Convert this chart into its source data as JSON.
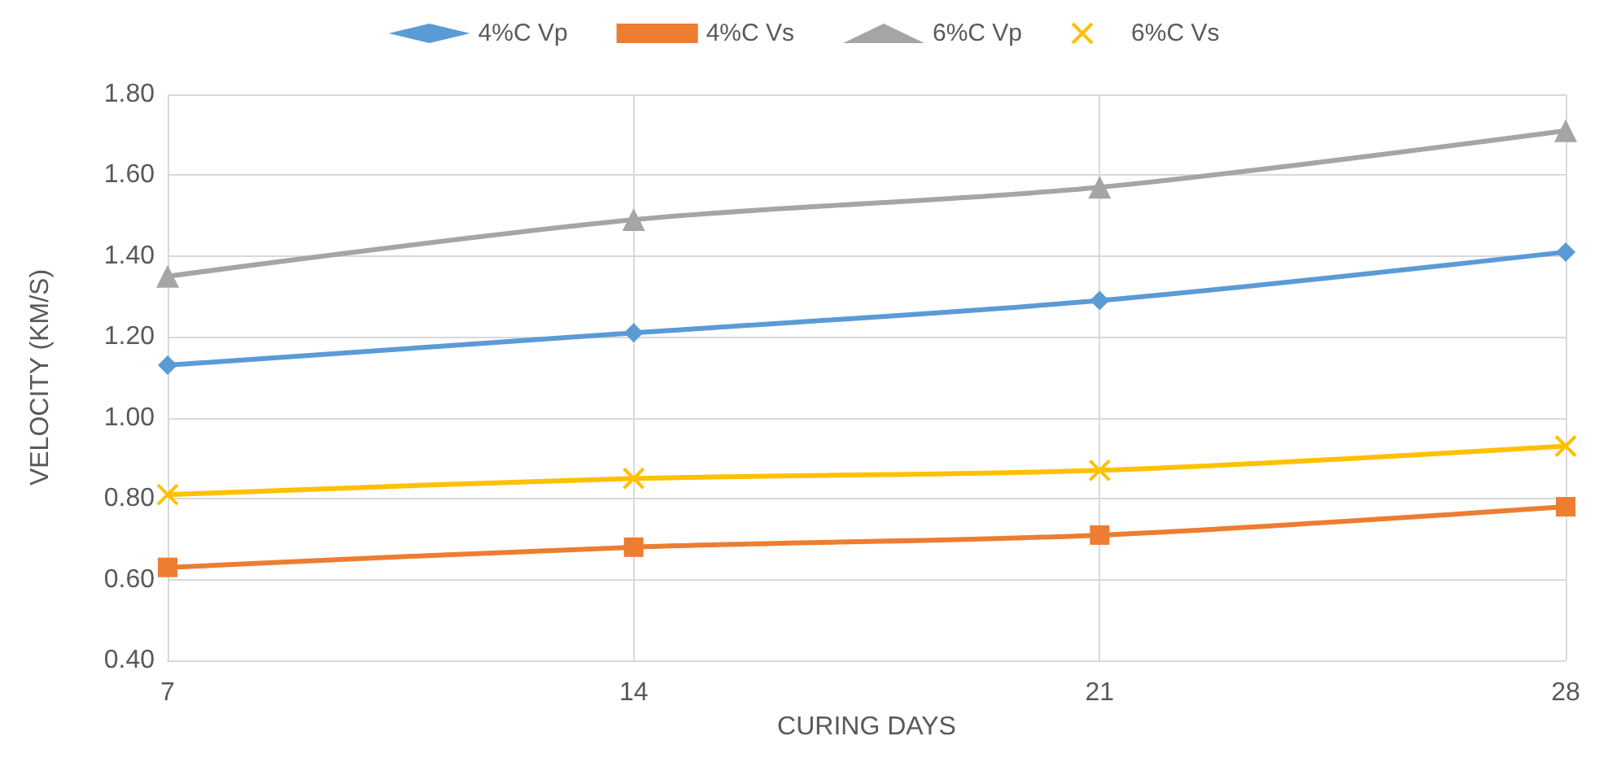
{
  "chart_data": {
    "type": "line",
    "xlabel": "CURING DAYS",
    "ylabel": "VELOCITY (KM/S)",
    "categories": [
      "7",
      "14",
      "21",
      "28"
    ],
    "series": [
      {
        "name": "4%C Vp",
        "color": "#5b9bd5",
        "marker": "diamond",
        "values": [
          1.13,
          1.21,
          1.29,
          1.41
        ]
      },
      {
        "name": "4%C Vs",
        "color": "#ed7d31",
        "marker": "square",
        "values": [
          0.63,
          0.68,
          0.71,
          0.78
        ]
      },
      {
        "name": "6%C Vp",
        "color": "#a5a5a5",
        "marker": "triangle",
        "values": [
          1.35,
          1.49,
          1.57,
          1.71
        ]
      },
      {
        "name": "6%C Vs",
        "color": "#ffc000",
        "marker": "cross",
        "values": [
          0.81,
          0.85,
          0.87,
          0.93
        ]
      }
    ],
    "ylim": [
      0.4,
      1.8
    ],
    "yticks": [
      {
        "value": 0.4,
        "label": "0.40"
      },
      {
        "value": 0.6,
        "label": "0.60"
      },
      {
        "value": 0.8,
        "label": "0.80"
      },
      {
        "value": 1.0,
        "label": "1.00"
      },
      {
        "value": 1.2,
        "label": "1.20"
      },
      {
        "value": 1.4,
        "label": "1.40"
      },
      {
        "value": 1.6,
        "label": "1.60"
      },
      {
        "value": 1.8,
        "label": "1.80"
      }
    ],
    "grid": true,
    "legend": "top",
    "line_style": "solid"
  }
}
